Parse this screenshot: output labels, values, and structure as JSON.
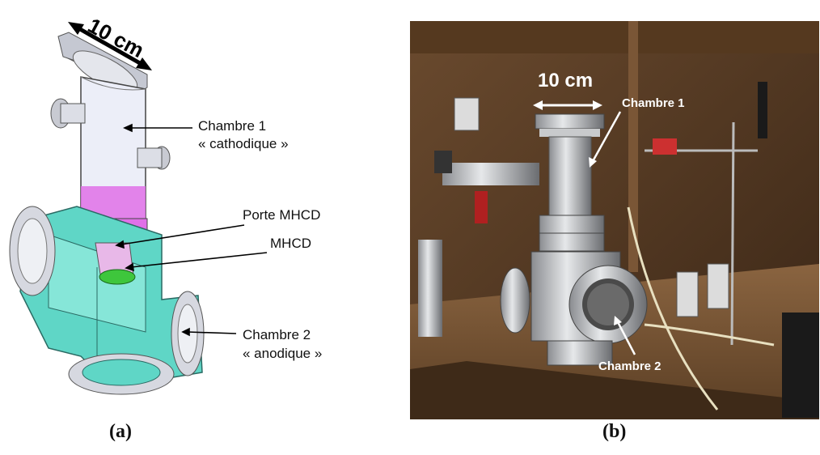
{
  "panel_a": {
    "dimension": "10 cm",
    "labels": {
      "chamber1_line1": "Chambre 1",
      "chamber1_line2": "« cathodique »",
      "porte_mhcd": "Porte MHCD",
      "mhcd": "MHCD",
      "chamber2_line1": "Chambre 2",
      "chamber2_line2": "« anodique »"
    },
    "caption": "(a)",
    "colors": {
      "chamber1": "#eceef8",
      "chamber2": "#5fd6c6",
      "flange": "#d6d8e0",
      "mhcd_holder": "#e070e8",
      "mhcd": "#3ec63c"
    }
  },
  "panel_b": {
    "dimension": "10 cm",
    "labels": {
      "chamber1": "Chambre 1",
      "chamber2": "Chambre 2"
    },
    "caption": "(b)"
  }
}
